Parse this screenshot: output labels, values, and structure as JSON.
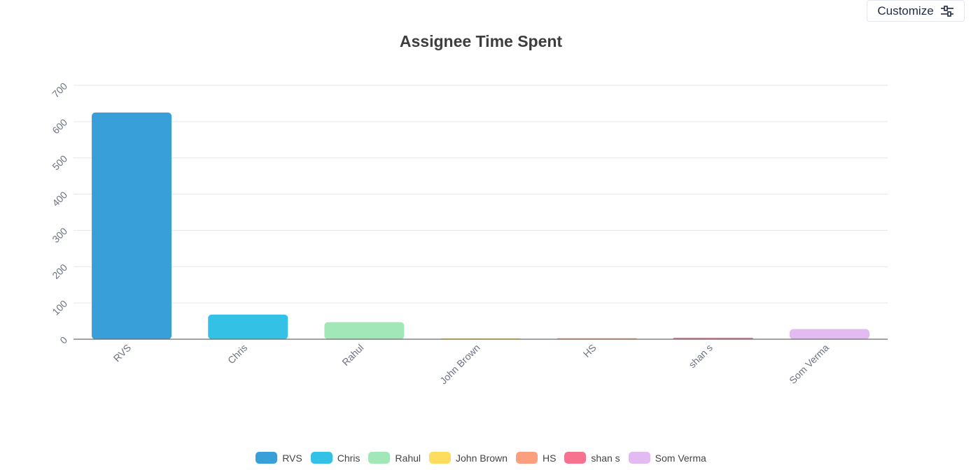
{
  "toolbar": {
    "customize_label": "Customize",
    "customize_icon": "sliders-icon"
  },
  "chart_data": {
    "type": "bar",
    "title": "Assignee Time Spent",
    "xlabel": "",
    "ylabel": "",
    "categories": [
      "RVS",
      "Chris",
      "Rahul",
      "John Brown",
      "HS",
      "shan s",
      "Som Verma"
    ],
    "values": [
      625,
      68,
      47,
      1,
      2,
      4,
      28
    ],
    "colors": [
      "#389fd9",
      "#33c1e6",
      "#a1e7b8",
      "#fedd5e",
      "#fb9f7e",
      "#f7728f",
      "#e3baf2"
    ],
    "ylim": [
      0,
      700
    ],
    "yticks": [
      "0",
      "100",
      "200",
      "300",
      "400",
      "500",
      "600",
      "700"
    ],
    "grid": true,
    "legend_position": "bottom"
  }
}
